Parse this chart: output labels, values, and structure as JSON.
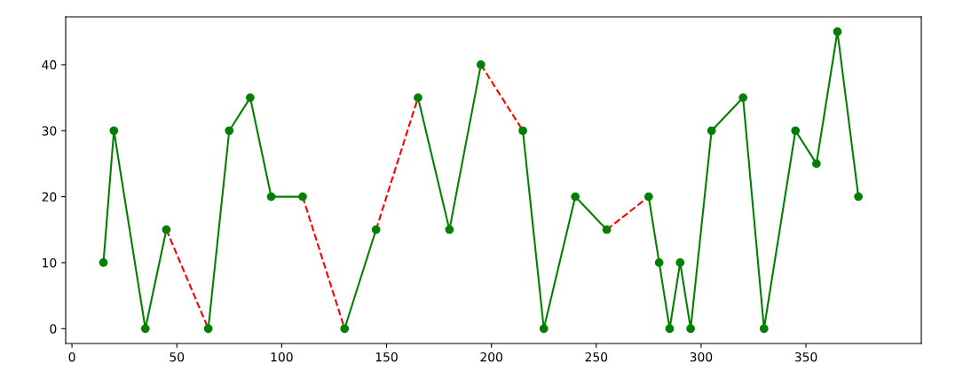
{
  "chart_data": {
    "type": "line",
    "xlim": [
      -3,
      405
    ],
    "ylim": [
      -2.25,
      47.25
    ],
    "xticks": [
      0,
      50,
      100,
      150,
      200,
      250,
      300,
      350
    ],
    "yticks": [
      0,
      10,
      20,
      30,
      40
    ],
    "grid": false,
    "series": [
      {
        "color": "#ff0000",
        "line_style": "dashed",
        "marker": "none",
        "x": [
          45,
          65
        ],
        "values": [
          15,
          0
        ]
      },
      {
        "color": "#ff0000",
        "line_style": "dashed",
        "marker": "none",
        "x": [
          110,
          130
        ],
        "values": [
          20,
          0
        ]
      },
      {
        "color": "#ff0000",
        "line_style": "dashed",
        "marker": "none",
        "x": [
          145,
          165
        ],
        "values": [
          15,
          35
        ]
      },
      {
        "color": "#ff0000",
        "line_style": "dashed",
        "marker": "none",
        "x": [
          195,
          215
        ],
        "values": [
          40,
          30
        ]
      },
      {
        "color": "#ff0000",
        "line_style": "dashed",
        "marker": "none",
        "x": [
          255,
          275
        ],
        "values": [
          15,
          20
        ]
      },
      {
        "color": "#008000",
        "line_style": "solid",
        "marker": "circle",
        "x": [
          15,
          20,
          35,
          45
        ],
        "values": [
          10,
          30,
          0,
          15
        ]
      },
      {
        "color": "#008000",
        "line_style": "solid",
        "marker": "circle",
        "x": [
          65,
          75,
          85,
          95,
          110
        ],
        "values": [
          0,
          30,
          35,
          20,
          20
        ]
      },
      {
        "color": "#008000",
        "line_style": "solid",
        "marker": "circle",
        "x": [
          130,
          145
        ],
        "values": [
          0,
          15
        ]
      },
      {
        "color": "#008000",
        "line_style": "solid",
        "marker": "circle",
        "x": [
          165,
          180,
          195
        ],
        "values": [
          35,
          15,
          40
        ]
      },
      {
        "color": "#008000",
        "line_style": "solid",
        "marker": "circle",
        "x": [
          215,
          225,
          240,
          255
        ],
        "values": [
          30,
          0,
          20,
          15
        ]
      },
      {
        "color": "#008000",
        "line_style": "solid",
        "marker": "circle",
        "x": [
          275,
          280,
          285,
          290,
          295,
          305,
          320,
          330,
          345,
          355,
          365,
          375
        ],
        "values": [
          20,
          10,
          0,
          10,
          0,
          30,
          35,
          0,
          30,
          25,
          45,
          20
        ]
      }
    ]
  }
}
